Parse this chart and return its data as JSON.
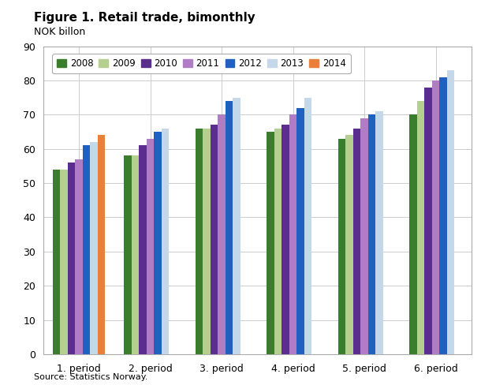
{
  "title": "Figure 1. Retail trade, bimonthly",
  "ylabel": "NOK billon",
  "source": "Source: Statistics Norway.",
  "categories": [
    "1. period",
    "2. period",
    "3. period",
    "4. period",
    "5. period",
    "6. period"
  ],
  "years": [
    "2008",
    "2009",
    "2010",
    "2011",
    "2012",
    "2013",
    "2014"
  ],
  "colors": [
    "#3a7d2c",
    "#b5cf8f",
    "#5b2d8e",
    "#b07cc6",
    "#2060c0",
    "#c5d8ea",
    "#e8803c"
  ],
  "values": {
    "2008": [
      54,
      58,
      66,
      65,
      63,
      70
    ],
    "2009": [
      54,
      58,
      66,
      66,
      64,
      74
    ],
    "2010": [
      56,
      61,
      67,
      67,
      66,
      78
    ],
    "2011": [
      57,
      63,
      70,
      70,
      69,
      80
    ],
    "2012": [
      61,
      65,
      74,
      72,
      70,
      81
    ],
    "2013": [
      62,
      66,
      75,
      75,
      71,
      83
    ],
    "2014": [
      64,
      null,
      null,
      null,
      null,
      null
    ]
  },
  "ylim": [
    0,
    90
  ],
  "yticks": [
    0,
    10,
    20,
    30,
    40,
    50,
    60,
    70,
    80,
    90
  ],
  "bg_color": "#ffffff",
  "grid_color": "#cccccc",
  "bar_width": 0.105,
  "figsize": [
    6.1,
    4.88
  ]
}
